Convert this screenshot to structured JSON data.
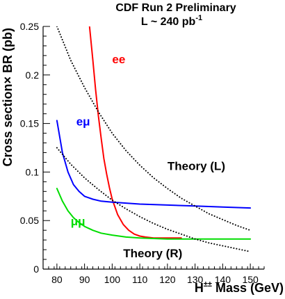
{
  "chart_data": {
    "type": "line",
    "title": "CDF Run 2 Preliminary",
    "subtitle_text": "L ~ 240 pb",
    "subtitle_superscript": "-1",
    "xlabel_main": "H",
    "xlabel_superscript": "±±",
    "xlabel_rest": " Mass (GeV)",
    "ylabel": "Cross section× BR (pb)",
    "xlim": [
      75,
      155
    ],
    "ylim": [
      0,
      0.25
    ],
    "x_ticks": [
      80,
      90,
      100,
      110,
      120,
      130,
      140,
      150
    ],
    "y_ticks": [
      0,
      0.05,
      0.1,
      0.15,
      0.2,
      0.25
    ],
    "y_tick_labels": [
      "0",
      "0.05",
      "0.1",
      "0.15",
      "0.2",
      "0.25"
    ],
    "grid": false,
    "series": [
      {
        "name": "ee",
        "color": "#ff0000",
        "style": "solid",
        "x": [
          91.8,
          93,
          94,
          95,
          96,
          97,
          98,
          99,
          100,
          102,
          104,
          106,
          108,
          110,
          112,
          115,
          120,
          125
        ],
        "y": [
          0.25,
          0.215,
          0.185,
          0.158,
          0.135,
          0.114,
          0.098,
          0.084,
          0.072,
          0.056,
          0.046,
          0.04,
          0.036,
          0.034,
          0.033,
          0.032,
          0.032,
          0.032
        ]
      },
      {
        "name": "eμ",
        "color": "#0000ff",
        "style": "solid",
        "x": [
          80,
          82,
          84,
          86,
          88,
          90,
          93,
          96,
          100,
          105,
          110,
          120,
          130,
          140,
          150
        ],
        "y": [
          0.153,
          0.12,
          0.1,
          0.087,
          0.08,
          0.075,
          0.072,
          0.07,
          0.069,
          0.068,
          0.067,
          0.066,
          0.065,
          0.064,
          0.063
        ]
      },
      {
        "name": "μμ",
        "color": "#00dd00",
        "style": "solid",
        "x": [
          80,
          82,
          84,
          86,
          88,
          90,
          93,
          96,
          100,
          105,
          110,
          120,
          130,
          140,
          150
        ],
        "y": [
          0.083,
          0.07,
          0.06,
          0.053,
          0.048,
          0.044,
          0.04,
          0.037,
          0.035,
          0.033,
          0.032,
          0.031,
          0.031,
          0.031,
          0.031
        ]
      },
      {
        "name": "Theory (L)",
        "color": "#000000",
        "style": "dotted",
        "x": [
          80,
          85,
          90,
          95,
          100,
          105,
          110,
          115,
          120,
          125,
          130,
          135,
          140,
          145,
          150
        ],
        "y": [
          0.25,
          0.215,
          0.187,
          0.162,
          0.14,
          0.122,
          0.107,
          0.094,
          0.083,
          0.073,
          0.065,
          0.057,
          0.051,
          0.045,
          0.04
        ]
      },
      {
        "name": "Theory (R)",
        "color": "#000000",
        "style": "dotted",
        "x": [
          80,
          85,
          90,
          95,
          100,
          105,
          110,
          115,
          120,
          125,
          130,
          135,
          140,
          145,
          150
        ],
        "y": [
          0.125,
          0.108,
          0.094,
          0.082,
          0.071,
          0.062,
          0.054,
          0.047,
          0.041,
          0.036,
          0.031,
          0.027,
          0.024,
          0.021,
          0.018
        ]
      }
    ],
    "annotations": [
      {
        "text": "ee",
        "color": "#ff0000",
        "x": 100,
        "y": 0.212
      },
      {
        "text": "eμ",
        "color": "#0000ff",
        "x": 87,
        "y": 0.148
      },
      {
        "text": "μμ",
        "color": "#00dd00",
        "x": 85,
        "y": 0.045
      },
      {
        "text": "Theory (L)",
        "color": "#000000",
        "x": 120,
        "y": 0.102
      },
      {
        "text": "Theory (R)",
        "color": "#000000",
        "x": 104,
        "y": 0.012
      }
    ]
  }
}
